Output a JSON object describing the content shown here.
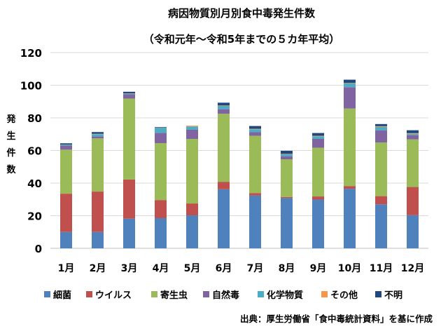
{
  "chart_data": {
    "type": "bar",
    "stacked": true,
    "title": "病因物質別月別食中毒発生件数",
    "subtitle": "（令和元年～令和5年までの５カ年平均）",
    "xlabel": "",
    "ylabel": "発生件数",
    "ylim": [
      0,
      120
    ],
    "yticks": [
      0,
      20,
      40,
      60,
      80,
      100,
      120
    ],
    "grid": true,
    "legend_position": "bottom",
    "categories": [
      "1月",
      "2月",
      "3月",
      "4月",
      "5月",
      "6月",
      "7月",
      "8月",
      "9月",
      "10月",
      "11月",
      "12月"
    ],
    "series": [
      {
        "name": "細菌",
        "color": "#4F81BD",
        "values": [
          10,
          10,
          18.2,
          18.5,
          20.2,
          36.2,
          32.3,
          30.8,
          29.9,
          36.5,
          27,
          20.3
        ]
      },
      {
        "name": "ウイルス",
        "color": "#C0504D",
        "values": [
          23.5,
          24.8,
          24,
          11.1,
          7.3,
          4.6,
          1.6,
          0.7,
          1.9,
          1.7,
          5,
          17.3
        ]
      },
      {
        "name": "寄生虫",
        "color": "#9BBB59",
        "values": [
          27,
          32.6,
          49.6,
          34.9,
          39.6,
          41.7,
          35.1,
          23.1,
          29.9,
          47.5,
          32.9,
          29.2
        ]
      },
      {
        "name": "自然毒",
        "color": "#8064A2",
        "values": [
          2.5,
          1.3,
          2.6,
          6.3,
          5.6,
          2.8,
          2.2,
          1.9,
          5.4,
          13.1,
          7.4,
          2.6
        ]
      },
      {
        "name": "化学物質",
        "color": "#4BACC6",
        "values": [
          0.5,
          1.3,
          0.4,
          3,
          2,
          2,
          1.8,
          1.2,
          1.6,
          2.3,
          2.1,
          0.8
        ]
      },
      {
        "name": "その他",
        "color": "#F79646",
        "values": [
          0.1,
          0.2,
          0.2,
          0.1,
          0.5,
          0.3,
          0.3,
          0.2,
          0.3,
          0.3,
          0.5,
          0.4
        ]
      },
      {
        "name": "不明",
        "color": "#1F497D",
        "values": [
          0.8,
          1.1,
          1.0,
          0.4,
          0,
          1.7,
          1.7,
          1.9,
          1.7,
          2.0,
          1.3,
          1.8
        ]
      }
    ],
    "source": "出典：厚生労働省「食中毒統計資料」を基に作成"
  }
}
